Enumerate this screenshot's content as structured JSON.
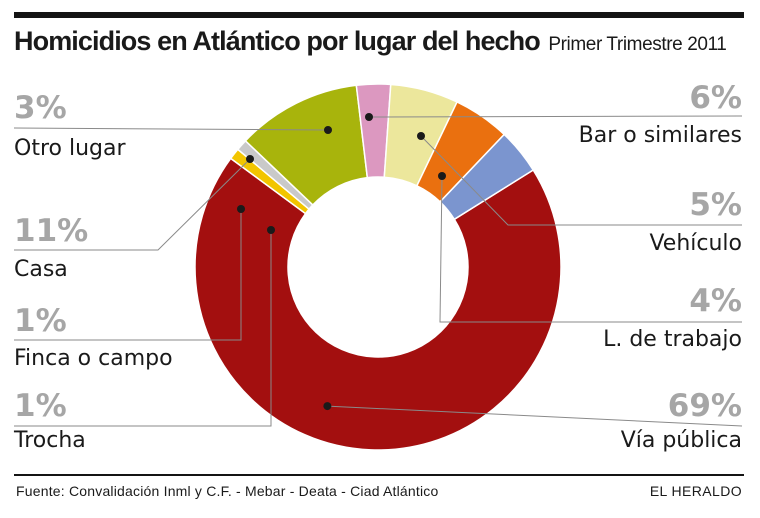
{
  "header": {
    "title": "Homicidios en Atlántico por lugar del hecho",
    "subtitle": "Primer Trimestre 2011"
  },
  "chart_data": {
    "type": "pie",
    "title": "Homicidios en Atlántico por lugar del hecho",
    "subtitle": "Primer Trimestre 2011",
    "unit": "%",
    "donut": true,
    "slices": [
      {
        "label": "Vía pública",
        "value": 69,
        "value_label": "69%",
        "color": "#a30f0f"
      },
      {
        "label": "Trocha",
        "value": 1,
        "value_label": "1%",
        "color": "#f2c500"
      },
      {
        "label": "Finca o campo",
        "value": 1,
        "value_label": "1%",
        "color": "#c9c9c9"
      },
      {
        "label": "Casa",
        "value": 11,
        "value_label": "11%",
        "color": "#a8b40c"
      },
      {
        "label": "Otro lugar",
        "value": 3,
        "value_label": "3%",
        "color": "#dc98c0"
      },
      {
        "label": "Bar o similares",
        "value": 6,
        "value_label": "6%",
        "color": "#ece79c"
      },
      {
        "label": "Vehículo",
        "value": 5,
        "value_label": "5%",
        "color": "#ea700f"
      },
      {
        "label": "L. de trabajo",
        "value": 4,
        "value_label": "4%",
        "color": "#7b95cf"
      }
    ]
  },
  "footer": {
    "source": "Fuente: Convalidación Inml y C.F. - Mebar - Deata - Ciad Atlántico",
    "brand": "EL HERALDO"
  }
}
